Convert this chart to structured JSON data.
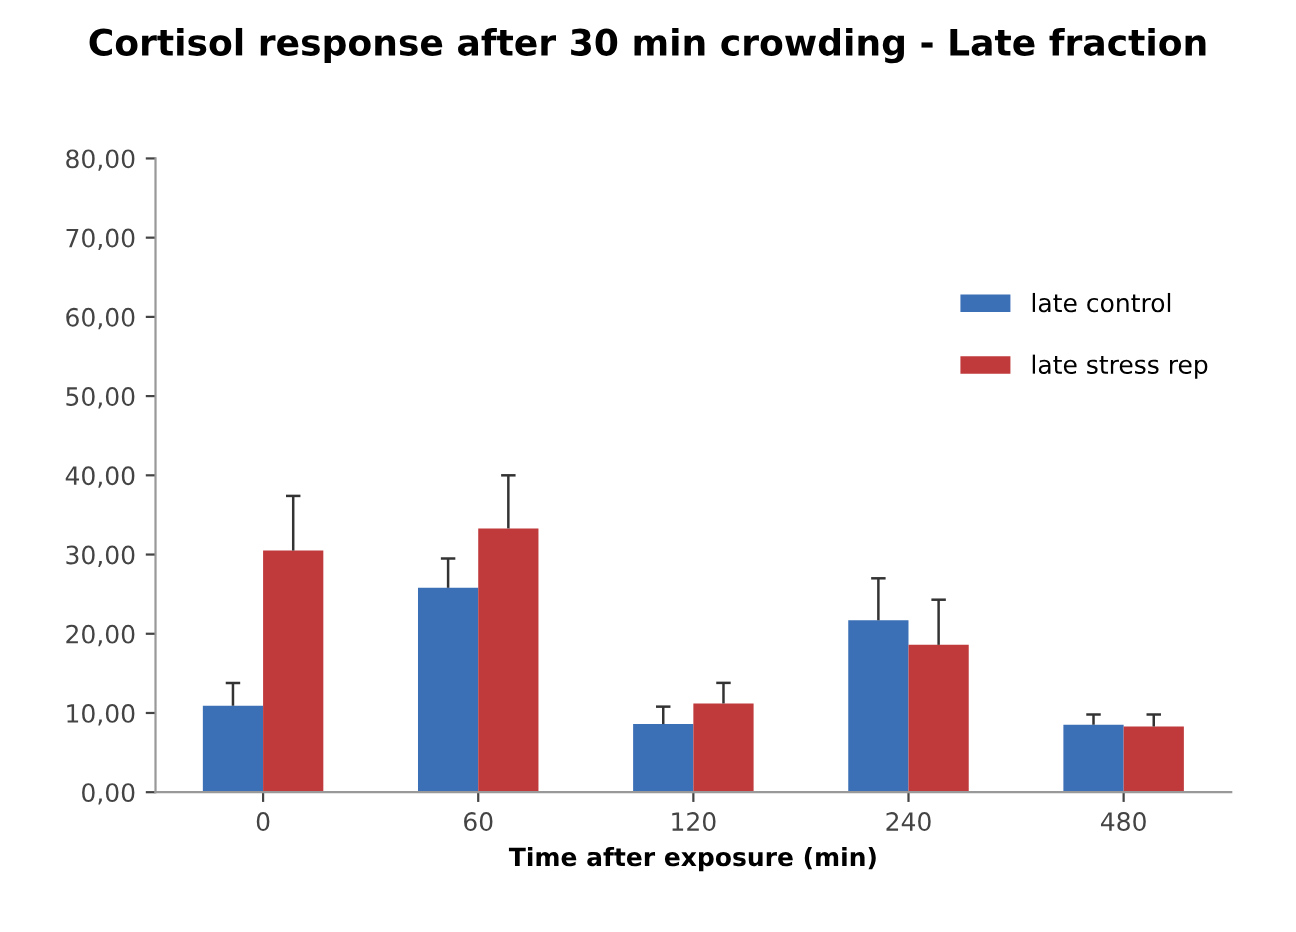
{
  "chart_data": {
    "type": "bar",
    "title": "Cortisol response after 30 min crowding - Late fraction",
    "xlabel": "Time after exposure (min)",
    "categories": [
      "0",
      "60",
      "120",
      "240",
      "480"
    ],
    "series": [
      {
        "name": "late control",
        "color": "#3b6fb6",
        "values": [
          10.9,
          25.8,
          8.6,
          21.7,
          8.5
        ],
        "errors": [
          [
            10.9,
            13.8
          ],
          [
            25.8,
            29.5
          ],
          [
            8.6,
            10.8
          ],
          [
            21.7,
            27.0
          ],
          [
            8.5,
            9.8
          ]
        ]
      },
      {
        "name": "late stress rep",
        "color": "#c0393b",
        "values": [
          30.5,
          33.3,
          11.2,
          18.6,
          8.3
        ],
        "errors": [
          [
            30.5,
            37.4
          ],
          [
            33.3,
            40.0
          ],
          [
            11.2,
            13.8
          ],
          [
            18.6,
            24.3
          ],
          [
            8.3,
            9.8
          ]
        ]
      }
    ],
    "ylim": [
      0,
      80
    ],
    "yticks": [
      {
        "value": 0,
        "label": "0,00"
      },
      {
        "value": 10,
        "label": "10,00"
      },
      {
        "value": 20,
        "label": "20,00"
      },
      {
        "value": 30,
        "label": "30,00"
      },
      {
        "value": 40,
        "label": "40,00"
      },
      {
        "value": 50,
        "label": "50,00"
      },
      {
        "value": 60,
        "label": "60,00"
      },
      {
        "value": 70,
        "label": "70,00"
      },
      {
        "value": 80,
        "label": "80,00"
      }
    ],
    "grid": false,
    "legend": "right"
  }
}
